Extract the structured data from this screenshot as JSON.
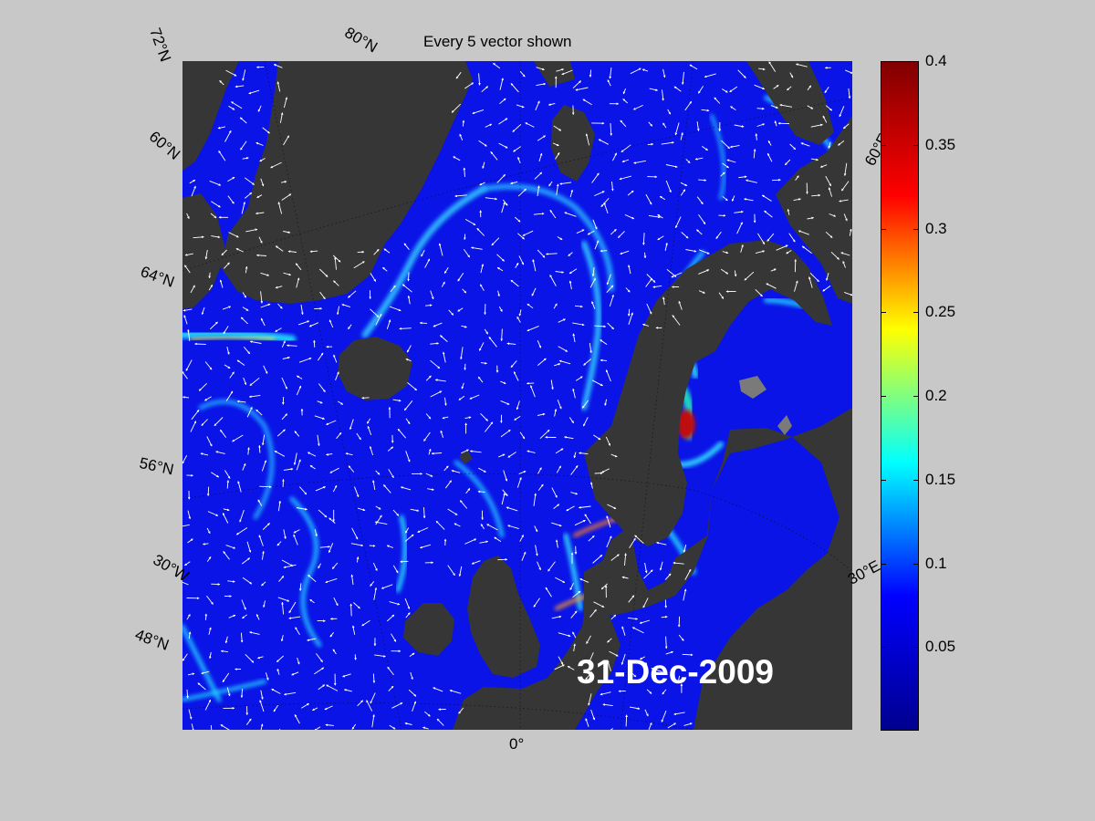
{
  "title": "Every 5 vector shown",
  "date_label": "31-Dec-2009",
  "colors": {
    "background": "#c8c8c8",
    "land": "#363636",
    "sea_ice_shelf": "#808080",
    "vector": "#ffffff"
  },
  "colormap": {
    "name": "jet",
    "stops": [
      "#00008f",
      "#0000ff",
      "#00ffff",
      "#ffff00",
      "#ff0000",
      "#800000"
    ]
  },
  "lat_labels": [
    {
      "text": "72°N"
    },
    {
      "text": "60°N"
    },
    {
      "text": "64°N"
    },
    {
      "text": "56°N"
    },
    {
      "text": "48°N"
    }
  ],
  "lon_labels": [
    {
      "text": "80°N"
    },
    {
      "text": "60°E"
    },
    {
      "text": "30°E"
    },
    {
      "text": "30°W"
    },
    {
      "text": "0°"
    }
  ],
  "colorbar": {
    "min": 0,
    "max": 0.4,
    "ticks": [
      {
        "value": 0.4,
        "label": "0.4"
      },
      {
        "value": 0.35,
        "label": "0.35"
      },
      {
        "value": 0.3,
        "label": "0.3"
      },
      {
        "value": 0.25,
        "label": "0.25"
      },
      {
        "value": 0.2,
        "label": "0.2"
      },
      {
        "value": 0.15,
        "label": "0.15"
      },
      {
        "value": 0.1,
        "label": "0.1"
      },
      {
        "value": 0.05,
        "label": "0.05"
      }
    ]
  }
}
